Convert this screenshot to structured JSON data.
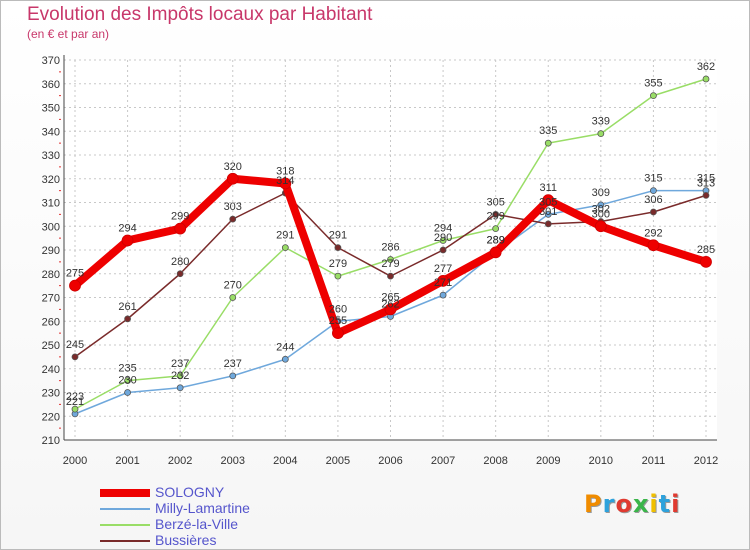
{
  "title": "Evolution des Impôts locaux par Habitant",
  "subtitle": "(en € et par an)",
  "logo": {
    "text": "Proxiti",
    "colors": [
      "#f08c00",
      "#2ea2dc",
      "#e03a30",
      "#3ab54a",
      "#f0c000",
      "#2ea2dc",
      "#e03a30"
    ]
  },
  "chart_data": {
    "type": "line",
    "title": "Evolution des Impôts locaux par Habitant",
    "subtitle": "(en € et par an)",
    "xlabel": "",
    "ylabel": "",
    "ylim": [
      210,
      370
    ],
    "yticks": [
      210,
      220,
      230,
      240,
      250,
      260,
      270,
      280,
      290,
      300,
      310,
      320,
      330,
      340,
      350,
      360,
      370
    ],
    "categories": [
      "2000",
      "2001",
      "2002",
      "2003",
      "2004",
      "2005",
      "2006",
      "2007",
      "2008",
      "2009",
      "2010",
      "2011",
      "2012"
    ],
    "grid": true,
    "legend_position": "bottom-left",
    "series": [
      {
        "name": "SOLOGNY",
        "color": "#ee0000",
        "bold": true,
        "values": [
          275,
          294,
          299,
          320,
          318,
          255,
          265,
          277,
          289,
          311,
          300,
          292,
          285
        ]
      },
      {
        "name": "Milly-Lamartine",
        "color": "#6fa8dc",
        "values": [
          221,
          230,
          232,
          237,
          244,
          260,
          262,
          271,
          289,
          305,
          309,
          315,
          315
        ]
      },
      {
        "name": "Berzé-la-Ville",
        "color": "#99dd66",
        "values": [
          223,
          235,
          237,
          270,
          291,
          279,
          286,
          294,
          299,
          335,
          339,
          355,
          362
        ]
      },
      {
        "name": "Bussières",
        "color": "#7a2b2b",
        "values": [
          245,
          261,
          280,
          303,
          314,
          291,
          279,
          290,
          305,
          301,
          302,
          306,
          313
        ]
      }
    ]
  }
}
